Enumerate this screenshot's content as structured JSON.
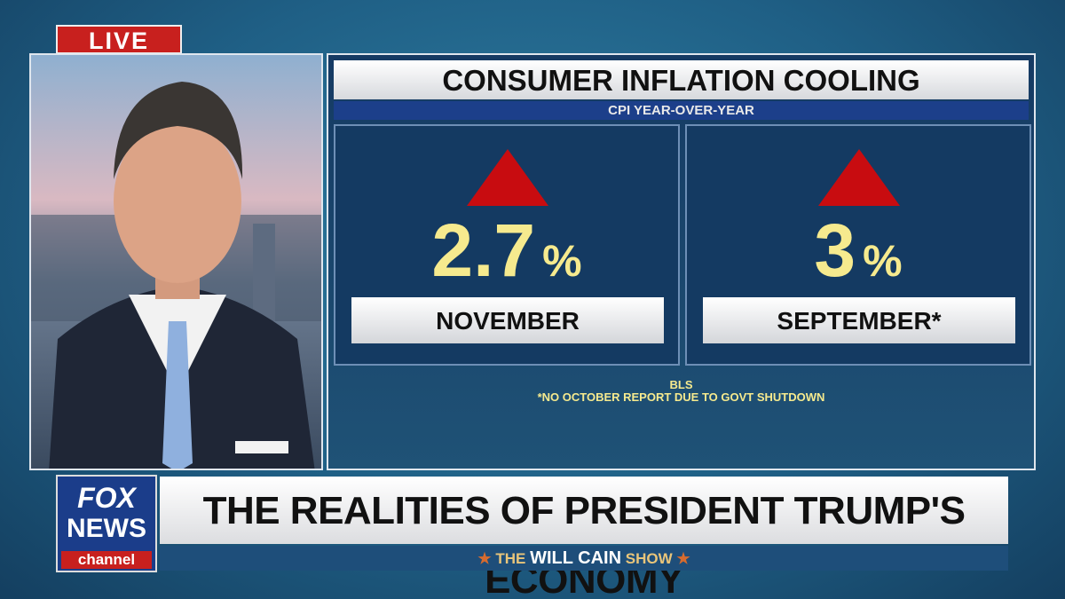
{
  "live": "LIVE",
  "graphic": {
    "title": "CONSUMER INFLATION COOLING",
    "subtitle": "CPI YEAR-OVER-YEAR",
    "panels": [
      {
        "value": 2.7,
        "unit": "%",
        "label": "NOVEMBER"
      },
      {
        "value": 3,
        "unit": "%",
        "label": "SEPTEMBER*"
      }
    ],
    "source": "BLS",
    "note": "*NO OCTOBER REPORT DUE TO GOVT SHUTDOWN"
  },
  "logo": {
    "line1": "FOX",
    "line2": "NEWS",
    "line3": "channel"
  },
  "banner": "THE REALITIES OF PRESIDENT TRUMP'S ECONOMY",
  "show": {
    "prefix": "THE",
    "name": "WILL CAIN",
    "suffix": "SHOW"
  }
}
